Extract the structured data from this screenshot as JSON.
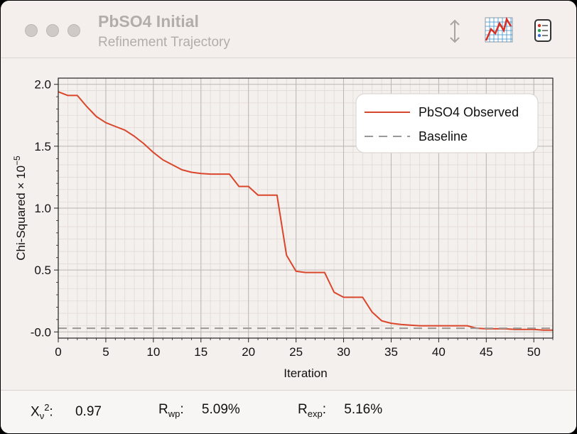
{
  "window": {
    "title": "PbSO4 Initial",
    "subtitle": "Refinement Trajectory"
  },
  "toolbar": {
    "icons": [
      "resize-vertical-icon",
      "chart-icon",
      "list-icon"
    ]
  },
  "chart_data": {
    "type": "line",
    "xlabel": "Iteration",
    "ylabel": "Chi-Squared × 10",
    "ylabel_exponent": "−5",
    "xlim": [
      0,
      52
    ],
    "ylim": [
      -0.05,
      2.05
    ],
    "x_ticks": [
      0,
      5,
      10,
      15,
      20,
      25,
      30,
      35,
      40,
      45,
      50
    ],
    "y_ticks": [
      0.0,
      0.5,
      1.0,
      1.5,
      2.0
    ],
    "y_tick_labels": [
      "-0.0",
      "0.5",
      "1.0",
      "1.5",
      "2.0"
    ],
    "grid": true,
    "legend_position": "top-right",
    "series": [
      {
        "name": "PbSO4 Observed",
        "color": "#d9462b",
        "style": "solid",
        "x": [
          0,
          1,
          2,
          3,
          4,
          5,
          6,
          7,
          8,
          9,
          10,
          11,
          12,
          13,
          14,
          15,
          16,
          17,
          18,
          19,
          20,
          21,
          22,
          23,
          24,
          25,
          26,
          27,
          28,
          29,
          30,
          31,
          32,
          33,
          34,
          35,
          36,
          37,
          38,
          39,
          40,
          41,
          42,
          43,
          44,
          45,
          46,
          47,
          48,
          49,
          50,
          51,
          52
        ],
        "y": [
          1.94,
          1.91,
          1.91,
          1.82,
          1.74,
          1.69,
          1.66,
          1.63,
          1.58,
          1.52,
          1.45,
          1.39,
          1.35,
          1.31,
          1.29,
          1.28,
          1.275,
          1.275,
          1.275,
          1.175,
          1.175,
          1.105,
          1.105,
          1.105,
          0.62,
          0.49,
          0.48,
          0.48,
          0.48,
          0.32,
          0.28,
          0.28,
          0.28,
          0.16,
          0.09,
          0.07,
          0.06,
          0.055,
          0.05,
          0.05,
          0.05,
          0.05,
          0.05,
          0.05,
          0.03,
          0.025,
          0.025,
          0.025,
          0.02,
          0.02,
          0.02,
          0.015,
          0.015
        ]
      },
      {
        "name": "Baseline",
        "color": "#9a9795",
        "style": "dashed",
        "x": [
          0,
          52
        ],
        "y": [
          0.03,
          0.03
        ]
      }
    ]
  },
  "stats": [
    {
      "label": "X",
      "sub": "ν",
      "sup": "2",
      "value": "0.97"
    },
    {
      "label": "R",
      "sub": "wp",
      "value": "5.09%"
    },
    {
      "label": "R",
      "sub": "exp",
      "value": "5.16%"
    }
  ]
}
